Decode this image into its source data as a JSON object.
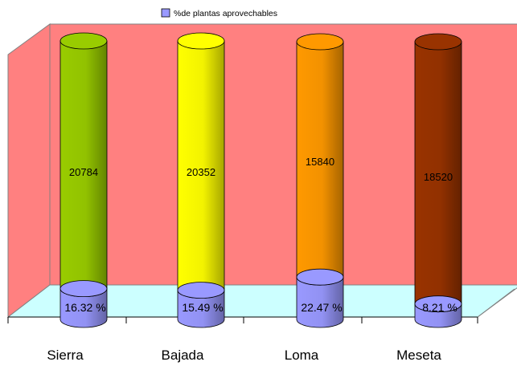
{
  "chart_data": {
    "type": "bar",
    "style": "stacked 3d cylinders",
    "categories": [
      "Sierra",
      "Bajada",
      "Loma",
      "Meseta"
    ],
    "series": [
      {
        "name": "%de plantas aprovechables",
        "values": [
          16.32,
          15.49,
          22.47,
          8.21
        ],
        "labels": [
          "16.32 %",
          "15.49 %",
          "22.47 %",
          "8.21 %"
        ],
        "color": "#9999ff"
      },
      {
        "name": "",
        "values": [
          20784,
          20352,
          15840,
          18520
        ],
        "labels": [
          "20784",
          "20352",
          "15840",
          "18520"
        ],
        "colors": [
          "#99cc00",
          "#ffff00",
          "#ff9900",
          "#993300"
        ]
      }
    ],
    "legend": {
      "position": "top"
    },
    "wall_color": "#ff8080",
    "floor_color": "#ccffff",
    "grid": false
  }
}
